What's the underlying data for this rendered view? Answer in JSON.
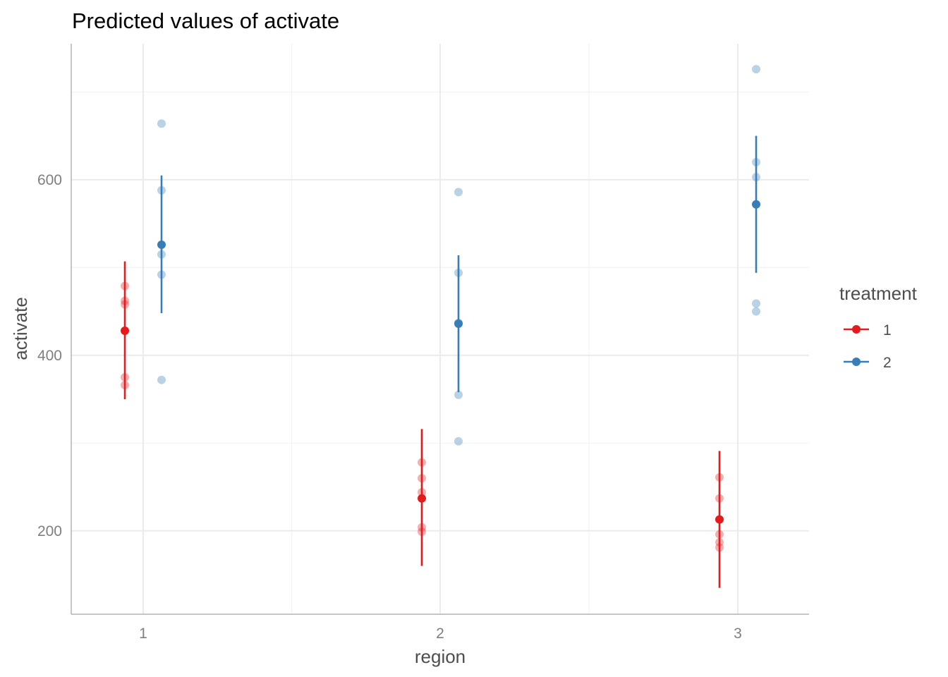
{
  "chart_data": {
    "type": "scatter",
    "title": "Predicted values of activate",
    "xlabel": "region",
    "ylabel": "activate",
    "categories": [
      "1",
      "2",
      "3"
    ],
    "ylim": [
      105,
      755
    ],
    "yticks": [
      200,
      400,
      600
    ],
    "grid": true,
    "legend": {
      "title": "treatment",
      "position": "right"
    },
    "series": [
      {
        "name": "1",
        "color": "#E41A1C",
        "predicted": [
          {
            "x": "1",
            "y": 428,
            "ci_low": 350,
            "ci_high": 507
          },
          {
            "x": "2",
            "y": 237,
            "ci_low": 160,
            "ci_high": 316
          },
          {
            "x": "3",
            "y": 213,
            "ci_low": 135,
            "ci_high": 291
          }
        ],
        "observed": [
          {
            "x": "1",
            "values": [
              479,
              462,
              458,
              375,
              366
            ]
          },
          {
            "x": "2",
            "values": [
              278,
              260,
              244,
              204,
              199
            ]
          },
          {
            "x": "3",
            "values": [
              261,
              237,
              196,
              187,
              181
            ]
          }
        ]
      },
      {
        "name": "2",
        "color": "#377EB8",
        "predicted": [
          {
            "x": "1",
            "y": 526,
            "ci_low": 448,
            "ci_high": 605
          },
          {
            "x": "2",
            "y": 436,
            "ci_low": 358,
            "ci_high": 514
          },
          {
            "x": "3",
            "y": 572,
            "ci_low": 494,
            "ci_high": 650
          }
        ],
        "observed": [
          {
            "x": "1",
            "values": [
              664,
              588,
              515,
              492,
              372
            ]
          },
          {
            "x": "2",
            "values": [
              586,
              494,
              437,
              355,
              302
            ]
          },
          {
            "x": "3",
            "values": [
              726,
              620,
              603,
              459,
              450
            ]
          }
        ]
      }
    ]
  }
}
